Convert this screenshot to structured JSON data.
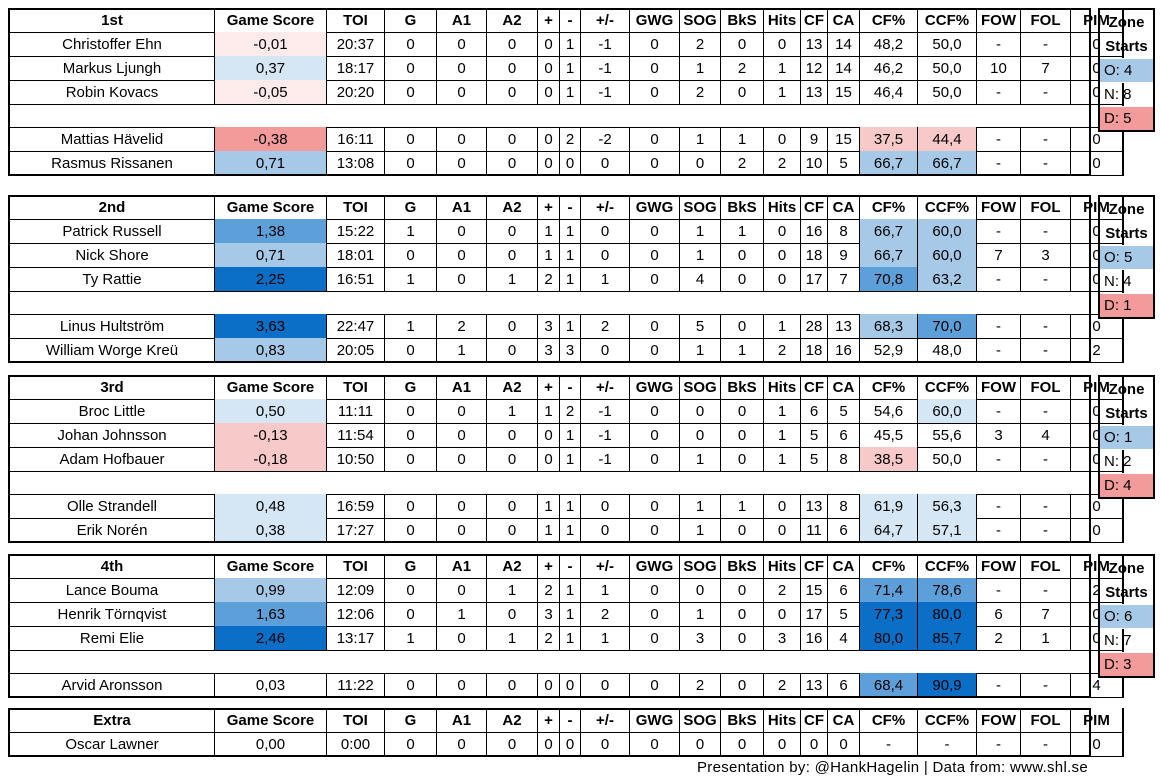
{
  "columns": [
    "Game Score",
    "TOI",
    "G",
    "A1",
    "A2",
    "+",
    "-",
    "+/-",
    "GWG",
    "SOG",
    "BkS",
    "Hits",
    "CF",
    "CA",
    "CF%",
    "CCF%",
    "FOW",
    "FOL",
    "PIM"
  ],
  "zone_title": [
    "Zone",
    "Starts"
  ],
  "colors": {
    "blue_dark": "#0b6fc7",
    "blue_mid": "#5d9fd8",
    "blue_light": "#a7c9e8",
    "blue_pale": "#d5e6f5",
    "red_strong": "#f39a9a",
    "red_light": "#f8c9c9",
    "red_pale": "#fdeaea"
  },
  "blocks": [
    {
      "label": "1st",
      "groups": [
        [
          {
            "name": "Christoffer Ehn",
            "vals": [
              "-0,01",
              "20:37",
              "0",
              "0",
              "0",
              "0",
              "1",
              "-1",
              "0",
              "2",
              "0",
              "0",
              "13",
              "14",
              "48,2",
              "50,0",
              "-",
              "-",
              "0"
            ],
            "gs": "red_pale",
            "cf": "",
            "ccf": ""
          },
          {
            "name": "Markus Ljungh",
            "vals": [
              "0,37",
              "18:17",
              "0",
              "0",
              "0",
              "0",
              "1",
              "-1",
              "0",
              "1",
              "2",
              "1",
              "12",
              "14",
              "46,2",
              "50,0",
              "10",
              "7",
              "0"
            ],
            "gs": "blue_pale",
            "cf": "",
            "ccf": ""
          },
          {
            "name": "Robin Kovacs",
            "vals": [
              "-0,05",
              "20:20",
              "0",
              "0",
              "0",
              "0",
              "1",
              "-1",
              "0",
              "2",
              "0",
              "1",
              "13",
              "15",
              "46,4",
              "50,0",
              "-",
              "-",
              "0"
            ],
            "gs": "red_pale",
            "cf": "",
            "ccf": ""
          }
        ],
        [
          {
            "name": "Mattias Hävelid",
            "vals": [
              "-0,38",
              "16:11",
              "0",
              "0",
              "0",
              "0",
              "2",
              "-2",
              "0",
              "1",
              "1",
              "0",
              "9",
              "15",
              "37,5",
              "44,4",
              "-",
              "-",
              "0"
            ],
            "gs": "red_strong",
            "cf": "red_light",
            "ccf": "red_light"
          },
          {
            "name": "Rasmus Rissanen",
            "vals": [
              "0,71",
              "13:08",
              "0",
              "0",
              "0",
              "0",
              "0",
              "0",
              "0",
              "0",
              "2",
              "2",
              "10",
              "5",
              "66,7",
              "66,7",
              "-",
              "-",
              "0"
            ],
            "gs": "blue_light",
            "cf": "blue_light",
            "ccf": "blue_light"
          }
        ]
      ],
      "zone": {
        "o": "O: 4",
        "n": "N: 8",
        "d": "D: 5"
      }
    },
    {
      "label": "2nd",
      "groups": [
        [
          {
            "name": "Patrick Russell",
            "vals": [
              "1,38",
              "15:22",
              "1",
              "0",
              "0",
              "1",
              "1",
              "0",
              "0",
              "1",
              "1",
              "0",
              "16",
              "8",
              "66,7",
              "60,0",
              "-",
              "-",
              "0"
            ],
            "gs": "blue_mid",
            "cf": "blue_light",
            "ccf": "blue_light"
          },
          {
            "name": "Nick Shore",
            "vals": [
              "0,71",
              "18:01",
              "0",
              "0",
              "0",
              "1",
              "1",
              "0",
              "0",
              "1",
              "0",
              "0",
              "18",
              "9",
              "66,7",
              "60,0",
              "7",
              "3",
              "0"
            ],
            "gs": "blue_light",
            "cf": "blue_light",
            "ccf": "blue_light"
          },
          {
            "name": "Ty Rattie",
            "vals": [
              "2,25",
              "16:51",
              "1",
              "0",
              "1",
              "2",
              "1",
              "1",
              "0",
              "4",
              "0",
              "0",
              "17",
              "7",
              "70,8",
              "63,2",
              "-",
              "-",
              "0"
            ],
            "gs": "blue_dark",
            "cf": "blue_mid",
            "ccf": "blue_light"
          }
        ],
        [
          {
            "name": "Linus Hultström",
            "vals": [
              "3,63",
              "22:47",
              "1",
              "2",
              "0",
              "3",
              "1",
              "2",
              "0",
              "5",
              "0",
              "1",
              "28",
              "13",
              "68,3",
              "70,0",
              "-",
              "-",
              "0"
            ],
            "gs": "blue_dark",
            "cf": "blue_light",
            "ccf": "blue_mid"
          },
          {
            "name": "William Worge Kreü",
            "vals": [
              "0,83",
              "20:05",
              "0",
              "1",
              "0",
              "3",
              "3",
              "0",
              "0",
              "1",
              "1",
              "2",
              "18",
              "16",
              "52,9",
              "48,0",
              "-",
              "-",
              "2"
            ],
            "gs": "blue_light",
            "cf": "",
            "ccf": ""
          }
        ]
      ],
      "zone": {
        "o": "O: 5",
        "n": "N: 4",
        "d": "D: 1"
      }
    },
    {
      "label": "3rd",
      "groups": [
        [
          {
            "name": "Broc Little",
            "vals": [
              "0,50",
              "11:11",
              "0",
              "0",
              "1",
              "1",
              "2",
              "-1",
              "0",
              "0",
              "0",
              "1",
              "6",
              "5",
              "54,6",
              "60,0",
              "-",
              "-",
              "0"
            ],
            "gs": "blue_pale",
            "cf": "",
            "ccf": "blue_pale"
          },
          {
            "name": "Johan Johnsson",
            "vals": [
              "-0,13",
              "11:54",
              "0",
              "0",
              "0",
              "0",
              "1",
              "-1",
              "0",
              "0",
              "0",
              "1",
              "5",
              "6",
              "45,5",
              "55,6",
              "3",
              "4",
              "0"
            ],
            "gs": "red_light",
            "cf": "",
            "ccf": ""
          },
          {
            "name": "Adam Hofbauer",
            "vals": [
              "-0,18",
              "10:50",
              "0",
              "0",
              "0",
              "0",
              "1",
              "-1",
              "0",
              "1",
              "0",
              "1",
              "5",
              "8",
              "38,5",
              "50,0",
              "-",
              "-",
              "0"
            ],
            "gs": "red_light",
            "cf": "red_light",
            "ccf": ""
          }
        ],
        [
          {
            "name": "Olle Strandell",
            "vals": [
              "0,48",
              "16:59",
              "0",
              "0",
              "0",
              "1",
              "1",
              "0",
              "0",
              "1",
              "1",
              "0",
              "13",
              "8",
              "61,9",
              "56,3",
              "-",
              "-",
              "0"
            ],
            "gs": "blue_pale",
            "cf": "blue_pale",
            "ccf": "blue_pale"
          },
          {
            "name": "Erik Norén",
            "vals": [
              "0,38",
              "17:27",
              "0",
              "0",
              "0",
              "1",
              "1",
              "0",
              "0",
              "1",
              "0",
              "0",
              "11",
              "6",
              "64,7",
              "57,1",
              "-",
              "-",
              "0"
            ],
            "gs": "blue_pale",
            "cf": "blue_pale",
            "ccf": "blue_pale"
          }
        ]
      ],
      "zone": {
        "o": "O: 1",
        "n": "N: 2",
        "d": "D: 4"
      }
    },
    {
      "label": "4th",
      "groups": [
        [
          {
            "name": "Lance Bouma",
            "vals": [
              "0,99",
              "12:09",
              "0",
              "0",
              "1",
              "2",
              "1",
              "1",
              "0",
              "0",
              "0",
              "2",
              "15",
              "6",
              "71,4",
              "78,6",
              "-",
              "-",
              "2"
            ],
            "gs": "blue_light",
            "cf": "blue_mid",
            "ccf": "blue_mid"
          },
          {
            "name": "Henrik Törnqvist",
            "vals": [
              "1,63",
              "12:06",
              "0",
              "1",
              "0",
              "3",
              "1",
              "2",
              "0",
              "1",
              "0",
              "0",
              "17",
              "5",
              "77,3",
              "80,0",
              "6",
              "7",
              "0"
            ],
            "gs": "blue_mid",
            "cf": "blue_dark",
            "ccf": "blue_dark"
          },
          {
            "name": "Remi Elie",
            "vals": [
              "2,46",
              "13:17",
              "1",
              "0",
              "1",
              "2",
              "1",
              "1",
              "0",
              "3",
              "0",
              "3",
              "16",
              "4",
              "80,0",
              "85,7",
              "2",
              "1",
              "0"
            ],
            "gs": "blue_dark",
            "cf": "blue_dark",
            "ccf": "blue_dark"
          }
        ],
        [
          {
            "name": "Arvid Aronsson",
            "vals": [
              "0,03",
              "11:22",
              "0",
              "0",
              "0",
              "0",
              "0",
              "0",
              "0",
              "2",
              "0",
              "2",
              "13",
              "6",
              "68,4",
              "90,9",
              "-",
              "-",
              "4"
            ],
            "gs": "",
            "cf": "blue_mid",
            "ccf": "blue_dark"
          }
        ]
      ],
      "zone": {
        "o": "O: 6",
        "n": "N: 7",
        "d": "D: 3"
      }
    },
    {
      "label": "Extra",
      "groups": [
        [
          {
            "name": "Oscar Lawner",
            "vals": [
              "0,00",
              "0:00",
              "0",
              "0",
              "0",
              "0",
              "0",
              "0",
              "0",
              "0",
              "0",
              "0",
              "0",
              "0",
              "-",
              "-",
              "-",
              "-",
              "0"
            ],
            "gs": "",
            "cf": "",
            "ccf": ""
          }
        ]
      ],
      "zone": null
    }
  ],
  "footer": "Presentation by: @HankHagelin | Data from: www.shl.se"
}
